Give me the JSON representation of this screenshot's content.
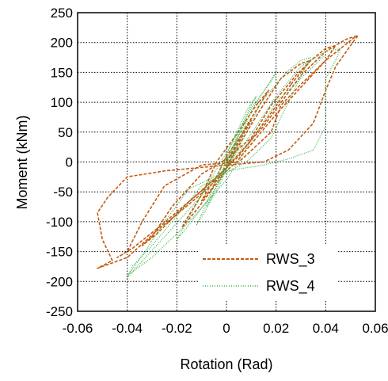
{
  "chart_data": {
    "type": "line",
    "title": "",
    "xlabel": "Rotation (Rad)",
    "ylabel": "Moment (kNm)",
    "xlim": [
      -0.06,
      0.06
    ],
    "ylim": [
      -250,
      250
    ],
    "xticks": [
      -0.06,
      -0.04,
      -0.02,
      0,
      0.02,
      0.04,
      0.06
    ],
    "xtick_labels": [
      "-0.06",
      "-0.04",
      "-0.02",
      "0",
      "0.02",
      "0.04",
      "0.06"
    ],
    "yticks": [
      -250,
      -200,
      -150,
      -100,
      -50,
      0,
      50,
      100,
      150,
      200,
      250
    ],
    "ytick_labels": [
      "-250",
      "-200",
      "-150",
      "-100",
      "-50",
      "0",
      "50",
      "100",
      "150",
      "200",
      "250"
    ],
    "grid": true,
    "legend_position": "bottom-right",
    "series": [
      {
        "name": "RWS_3",
        "color": "#c55a11",
        "style": "dashed",
        "loops": [
          [
            [
              0,
              0
            ],
            [
              0.004,
              25
            ],
            [
              0.008,
              55
            ],
            [
              0.01,
              70
            ],
            [
              0.006,
              45
            ],
            [
              0.0,
              10
            ],
            [
              -0.004,
              -25
            ],
            [
              -0.008,
              -50
            ],
            [
              -0.01,
              -65
            ],
            [
              -0.006,
              -45
            ],
            [
              0,
              -5
            ],
            [
              0.004,
              20
            ]
          ],
          [
            [
              0,
              0
            ],
            [
              0.008,
              60
            ],
            [
              0.014,
              100
            ],
            [
              0.017,
              120
            ],
            [
              0.012,
              95
            ],
            [
              0.003,
              40
            ],
            [
              -0.004,
              0
            ],
            [
              -0.01,
              -55
            ],
            [
              -0.016,
              -95
            ],
            [
              -0.018,
              -110
            ],
            [
              -0.012,
              -80
            ],
            [
              -0.002,
              -25
            ],
            [
              0.006,
              35
            ],
            [
              0.014,
              90
            ]
          ],
          [
            [
              0.014,
              90
            ],
            [
              0.022,
              140
            ],
            [
              0.03,
              165
            ],
            [
              0.034,
              170
            ],
            [
              0.028,
              145
            ],
            [
              0.018,
              95
            ],
            [
              0.01,
              40
            ],
            [
              0.0,
              5
            ],
            [
              -0.01,
              -20
            ],
            [
              -0.022,
              -75
            ],
            [
              -0.03,
              -125
            ],
            [
              -0.034,
              -140
            ],
            [
              -0.028,
              -120
            ],
            [
              -0.016,
              -70
            ],
            [
              -0.005,
              -30
            ],
            [
              0.005,
              10
            ],
            [
              0.016,
              70
            ],
            [
              0.026,
              130
            ]
          ],
          [
            [
              0.026,
              130
            ],
            [
              0.034,
              170
            ],
            [
              0.04,
              190
            ],
            [
              0.044,
              195
            ],
            [
              0.04,
              170
            ],
            [
              0.03,
              130
            ],
            [
              0.022,
              95
            ],
            [
              0.018,
              50
            ],
            [
              0.005,
              0
            ],
            [
              -0.01,
              -5
            ],
            [
              -0.025,
              -40
            ],
            [
              -0.034,
              -100
            ],
            [
              -0.04,
              -150
            ],
            [
              -0.044,
              -160
            ],
            [
              -0.038,
              -145
            ],
            [
              -0.026,
              -105
            ],
            [
              -0.012,
              -55
            ],
            [
              0.0,
              -10
            ],
            [
              0.015,
              60
            ],
            [
              0.03,
              145
            ]
          ],
          [
            [
              0.03,
              145
            ],
            [
              0.04,
              185
            ],
            [
              0.048,
              205
            ],
            [
              0.053,
              212
            ],
            [
              0.05,
              195
            ],
            [
              0.044,
              160
            ],
            [
              0.04,
              120
            ],
            [
              0.035,
              65
            ],
            [
              0.025,
              20
            ],
            [
              0.015,
              0
            ],
            [
              0.0,
              -5
            ],
            [
              -0.025,
              -15
            ],
            [
              -0.04,
              -25
            ],
            [
              -0.048,
              -60
            ],
            [
              -0.052,
              -85
            ],
            [
              -0.05,
              -130
            ],
            [
              -0.046,
              -165
            ],
            [
              -0.052,
              -178
            ],
            [
              -0.04,
              -160
            ],
            [
              -0.028,
              -115
            ],
            [
              -0.012,
              -60
            ],
            [
              0.004,
              0
            ],
            [
              0.02,
              80
            ],
            [
              0.04,
              170
            ],
            [
              0.052,
              210
            ]
          ]
        ]
      },
      {
        "name": "RWS_4",
        "color": "#3cb44b",
        "style": "dotted",
        "loops": [
          [
            [
              0,
              0
            ],
            [
              0.003,
              25
            ],
            [
              0.006,
              55
            ],
            [
              0.008,
              70
            ],
            [
              0.005,
              45
            ],
            [
              0,
              5
            ],
            [
              -0.003,
              -30
            ],
            [
              -0.006,
              -60
            ],
            [
              -0.008,
              -75
            ],
            [
              -0.005,
              -50
            ],
            [
              0,
              -10
            ],
            [
              0.004,
              30
            ]
          ],
          [
            [
              0,
              0
            ],
            [
              0.006,
              60
            ],
            [
              0.01,
              95
            ],
            [
              0.012,
              110
            ],
            [
              0.008,
              85
            ],
            [
              0.002,
              30
            ],
            [
              -0.004,
              -25
            ],
            [
              -0.008,
              -70
            ],
            [
              -0.012,
              -105
            ],
            [
              -0.009,
              -85
            ],
            [
              -0.003,
              -40
            ],
            [
              0.004,
              25
            ],
            [
              0.01,
              85
            ]
          ],
          [
            [
              0.01,
              85
            ],
            [
              0.016,
              125
            ],
            [
              0.02,
              150
            ],
            [
              0.018,
              135
            ],
            [
              0.01,
              90
            ],
            [
              0.002,
              30
            ],
            [
              -0.008,
              -40
            ],
            [
              -0.016,
              -100
            ],
            [
              -0.02,
              -130
            ],
            [
              -0.016,
              -110
            ],
            [
              -0.006,
              -55
            ],
            [
              0.004,
              15
            ],
            [
              0.014,
              100
            ]
          ],
          [
            [
              0.014,
              100
            ],
            [
              0.024,
              150
            ],
            [
              0.03,
              170
            ],
            [
              0.034,
              175
            ],
            [
              0.032,
              160
            ],
            [
              0.026,
              110
            ],
            [
              0.018,
              40
            ],
            [
              0.008,
              0
            ],
            [
              -0.01,
              -40
            ],
            [
              -0.02,
              -90
            ],
            [
              -0.03,
              -140
            ],
            [
              -0.038,
              -175
            ],
            [
              -0.04,
              -195
            ],
            [
              -0.036,
              -175
            ],
            [
              -0.026,
              -130
            ],
            [
              -0.012,
              -65
            ],
            [
              0.004,
              10
            ],
            [
              0.02,
              110
            ]
          ],
          [
            [
              0.02,
              110
            ],
            [
              0.03,
              160
            ],
            [
              0.04,
              185
            ],
            [
              0.046,
              190
            ],
            [
              0.044,
              170
            ],
            [
              0.04,
              140
            ],
            [
              0.04,
              60
            ],
            [
              0.035,
              20
            ],
            [
              0.025,
              5
            ],
            [
              0.015,
              -5
            ],
            [
              0.0,
              -15
            ],
            [
              -0.015,
              -45
            ],
            [
              -0.025,
              -100
            ],
            [
              -0.032,
              -145
            ],
            [
              -0.038,
              -180
            ],
            [
              -0.04,
              -190
            ],
            [
              -0.03,
              -160
            ],
            [
              -0.015,
              -100
            ],
            [
              0.0,
              -30
            ],
            [
              0.02,
              100
            ],
            [
              0.04,
              180
            ]
          ]
        ]
      }
    ]
  }
}
